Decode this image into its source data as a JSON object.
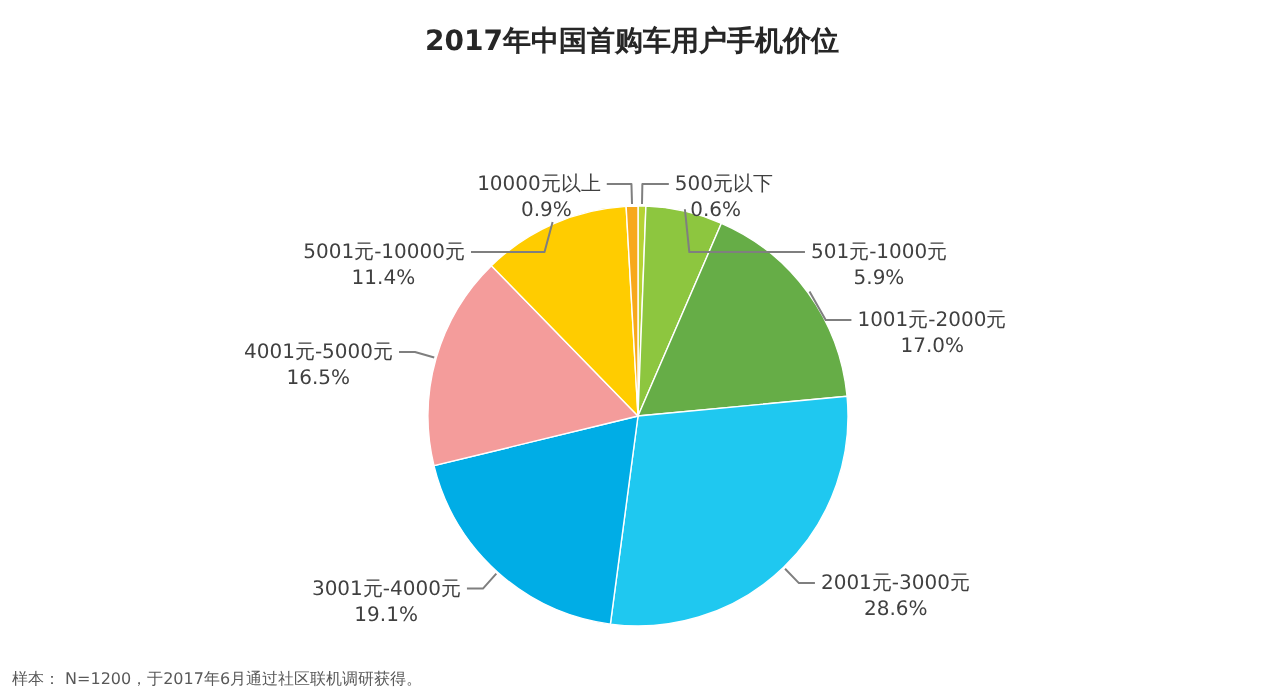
{
  "chart_data": {
    "type": "pie",
    "title": "2017年中国首购车用户手机价位",
    "categories": [
      "500元以下",
      "501元-1000元",
      "1001元-2000元",
      "2001元-3000元",
      "3001元-4000元",
      "4001元-5000元",
      "5001元-10000元",
      "10000元以上"
    ],
    "values": [
      0.6,
      5.9,
      17.0,
      28.6,
      19.1,
      16.5,
      11.4,
      0.9
    ],
    "value_labels": [
      "0.6%",
      "5.9%",
      "17.0%",
      "28.6%",
      "19.1%",
      "16.5%",
      "11.4%",
      "0.9%"
    ],
    "colors": [
      "#b5d334",
      "#8dc63f",
      "#66ad47",
      "#1fc8f0",
      "#00ade6",
      "#f49c9b",
      "#ffcc00",
      "#f7a81b"
    ],
    "annotations": [
      "样本： N=1200，于2017年6月通过社区联机调研获得。"
    ]
  }
}
